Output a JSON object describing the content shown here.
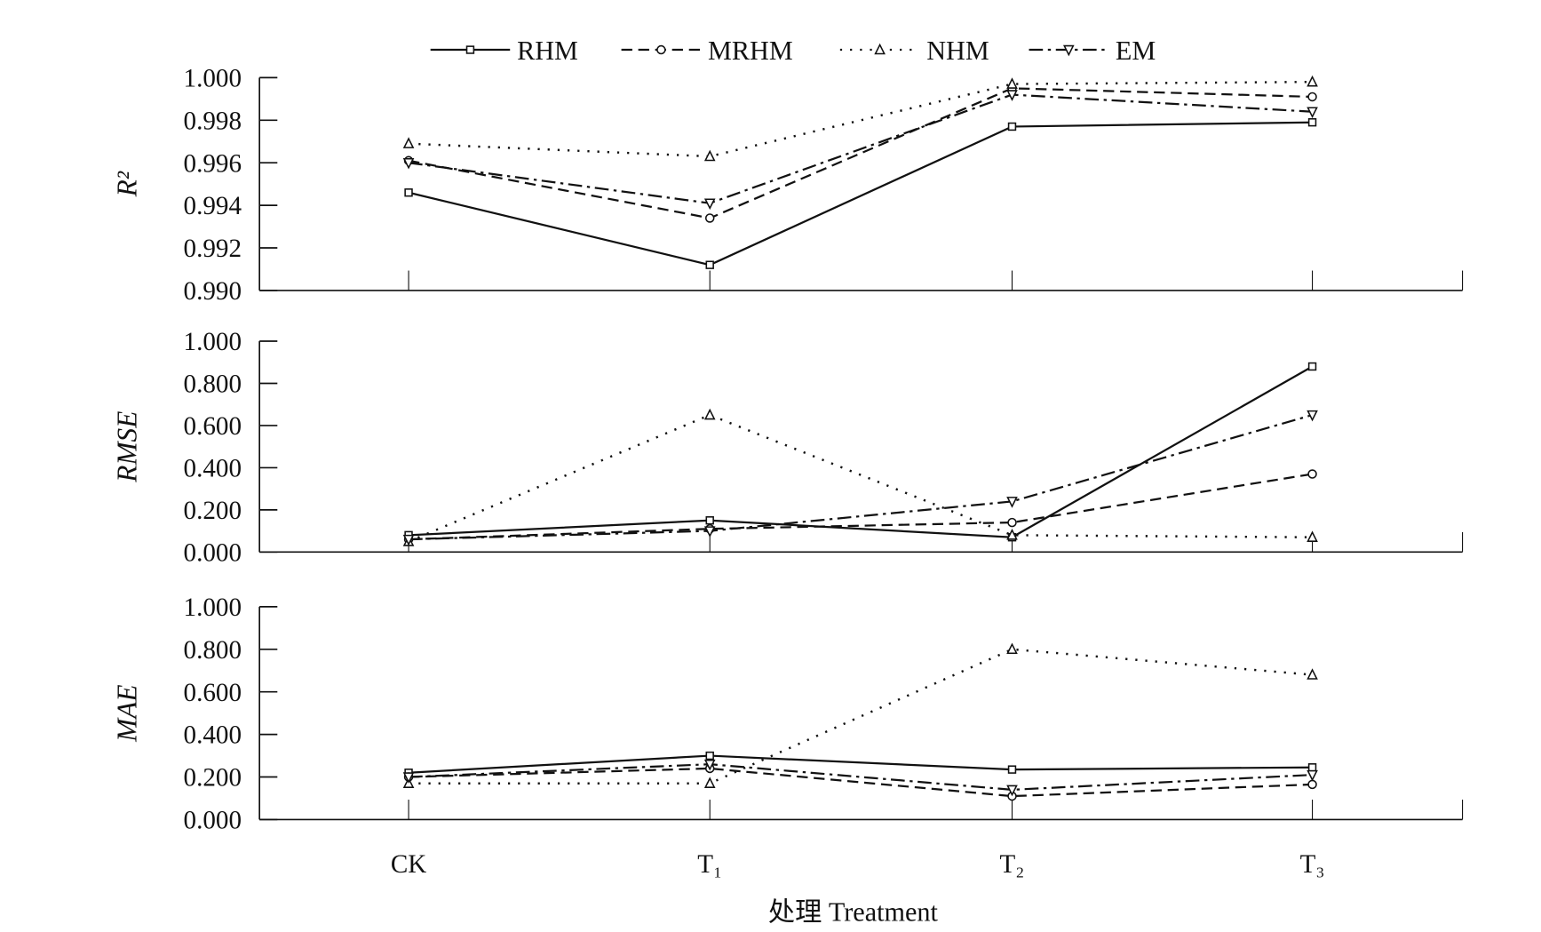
{
  "chart_data": {
    "type": "line",
    "xlabel": "处理 Treatment",
    "categories": [
      "CK",
      "T₁",
      "T₂",
      "T₃"
    ],
    "legend": {
      "placement": "top-center",
      "entries": [
        "RHM",
        "MRHM",
        "NHM",
        "EM"
      ]
    },
    "series_styles": {
      "RHM": {
        "marker": "square",
        "dash": "solid"
      },
      "MRHM": {
        "marker": "circle",
        "dash": "dashed"
      },
      "NHM": {
        "marker": "triangle-up",
        "dash": "dotted"
      },
      "EM": {
        "marker": "triangle-down",
        "dash": "dash-dot"
      }
    },
    "panels": [
      {
        "ylabel": "R²",
        "ylim": [
          0.99,
          1.0
        ],
        "yticks": [
          "0.990",
          "0.992",
          "0.994",
          "0.996",
          "0.998",
          "1.000"
        ],
        "series": [
          {
            "name": "RHM",
            "values": [
              0.9946,
              0.9912,
              0.9977,
              0.9979
            ]
          },
          {
            "name": "MRHM",
            "values": [
              0.9961,
              0.9934,
              0.9995,
              0.9991
            ]
          },
          {
            "name": "NHM",
            "values": [
              0.9969,
              0.9963,
              0.9997,
              0.9998
            ]
          },
          {
            "name": "EM",
            "values": [
              0.996,
              0.9941,
              0.9992,
              0.9984
            ]
          }
        ]
      },
      {
        "ylabel": "RMSE",
        "ylim": [
          0,
          1
        ],
        "yticks": [
          "0.000",
          "0.200",
          "0.400",
          "0.600",
          "0.800",
          "1.000"
        ],
        "series": [
          {
            "name": "RHM",
            "values": [
              0.08,
              0.15,
              0.07,
              0.88
            ]
          },
          {
            "name": "MRHM",
            "values": [
              0.06,
              0.11,
              0.14,
              0.37
            ]
          },
          {
            "name": "NHM",
            "values": [
              0.05,
              0.65,
              0.08,
              0.07
            ]
          },
          {
            "name": "EM",
            "values": [
              0.06,
              0.1,
              0.24,
              0.65
            ]
          }
        ]
      },
      {
        "ylabel": "MAE",
        "ylim": [
          0,
          1
        ],
        "yticks": [
          "0.000",
          "0.200",
          "0.400",
          "0.600",
          "0.800",
          "1.000"
        ],
        "series": [
          {
            "name": "RHM",
            "values": [
              0.22,
              0.3,
              0.235,
              0.245
            ]
          },
          {
            "name": "MRHM",
            "values": [
              0.2,
              0.24,
              0.11,
              0.165
            ]
          },
          {
            "name": "NHM",
            "values": [
              0.17,
              0.17,
              0.8,
              0.68
            ]
          },
          {
            "name": "EM",
            "values": [
              0.2,
              0.26,
              0.14,
              0.21
            ]
          }
        ]
      }
    ]
  }
}
